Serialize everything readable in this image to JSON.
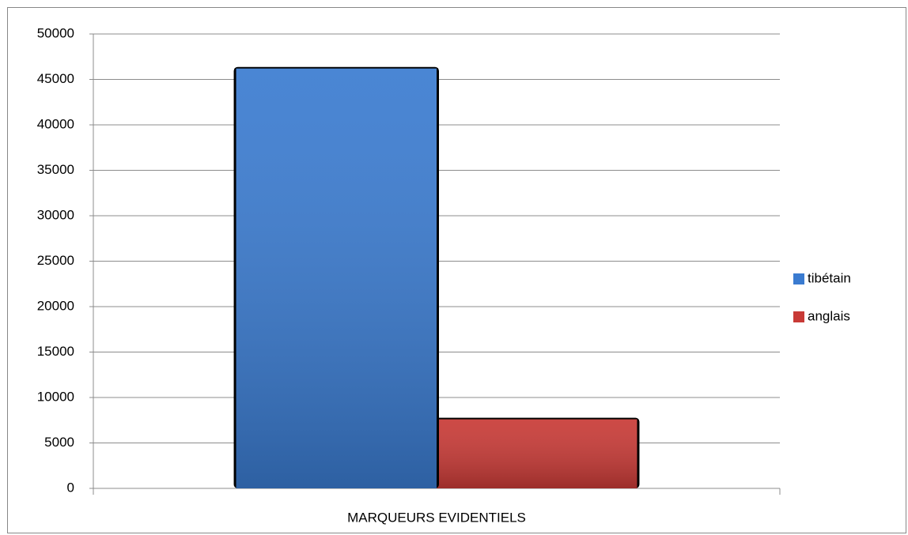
{
  "chart_data": {
    "type": "bar",
    "categories": [
      "MARQUEURS EVIDENTIELS"
    ],
    "series": [
      {
        "name": "tibétain",
        "color": "#3a7bd0",
        "values": [
          46200
        ]
      },
      {
        "name": "anglais",
        "color": "#c83a36",
        "values": [
          7600
        ]
      }
    ],
    "ylim": [
      0,
      50000
    ],
    "yticks": [
      0,
      5000,
      10000,
      15000,
      20000,
      25000,
      30000,
      35000,
      40000,
      45000,
      50000
    ],
    "grid": true,
    "legend": "right"
  }
}
